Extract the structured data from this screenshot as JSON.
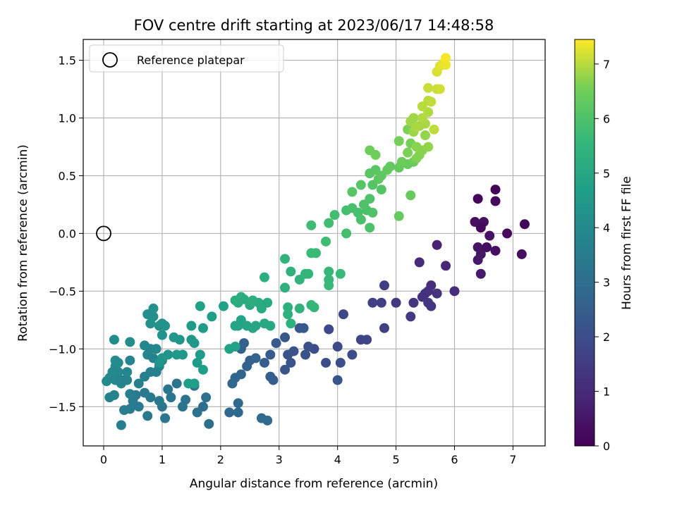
{
  "chart_data": {
    "type": "scatter",
    "title": "FOV centre drift starting at 2023/06/17 14:48:58",
    "xlabel": "Angular distance from reference (arcmin)",
    "ylabel": "Rotation from reference (arcmin)",
    "xlim": [
      -0.35,
      7.55
    ],
    "ylim": [
      -1.84,
      1.68
    ],
    "xticks": [
      0,
      1,
      2,
      3,
      4,
      5,
      6,
      7
    ],
    "yticks": [
      -1.5,
      -1.0,
      -0.5,
      0.0,
      0.5,
      1.0,
      1.5
    ],
    "grid": true,
    "legend": {
      "placement": "top-left",
      "entries": [
        "Reference platepar"
      ]
    },
    "reference_point": {
      "x": 0.0,
      "y": 0.0
    },
    "colorbar": {
      "label": "Hours from first FF file",
      "colormap": "viridis",
      "range": [
        0,
        7.45
      ],
      "ticks": [
        0,
        1,
        2,
        3,
        4,
        5,
        6,
        7
      ]
    },
    "points": [
      [
        6.7,
        0.38,
        0.1
      ],
      [
        6.4,
        0.3,
        0.15
      ],
      [
        6.7,
        0.28,
        0.2
      ],
      [
        7.2,
        0.08,
        0.1
      ],
      [
        6.9,
        0.0,
        0.25
      ],
      [
        6.35,
        0.1,
        0.3
      ],
      [
        6.5,
        0.1,
        0.35
      ],
      [
        6.45,
        0.05,
        0.2
      ],
      [
        6.6,
        -0.02,
        0.4
      ],
      [
        6.4,
        -0.12,
        0.45
      ],
      [
        6.55,
        -0.12,
        0.3
      ],
      [
        6.7,
        -0.15,
        0.35
      ],
      [
        6.45,
        -0.18,
        0.5
      ],
      [
        6.4,
        -0.23,
        0.55
      ],
      [
        7.15,
        -0.18,
        0.3
      ],
      [
        6.45,
        -0.35,
        0.6
      ],
      [
        5.7,
        -0.1,
        0.8
      ],
      [
        5.85,
        -0.28,
        0.9
      ],
      [
        5.4,
        -0.25,
        1.0
      ],
      [
        6.0,
        -0.5,
        1.1
      ],
      [
        5.6,
        -0.45,
        1.1
      ],
      [
        5.55,
        -0.5,
        1.15
      ],
      [
        5.5,
        -0.52,
        1.2
      ],
      [
        5.45,
        -0.55,
        1.2
      ],
      [
        5.7,
        -0.52,
        1.25
      ],
      [
        5.55,
        -0.6,
        1.3
      ],
      [
        5.6,
        -0.63,
        1.3
      ],
      [
        5.3,
        -0.6,
        1.35
      ],
      [
        5.0,
        -0.6,
        1.4
      ],
      [
        5.25,
        -0.72,
        1.45
      ],
      [
        4.8,
        -0.45,
        1.5
      ],
      [
        4.75,
        -0.6,
        1.55
      ],
      [
        4.6,
        -0.6,
        1.6
      ],
      [
        4.8,
        -0.82,
        1.65
      ],
      [
        4.4,
        -0.92,
        1.7
      ],
      [
        4.5,
        -0.92,
        1.75
      ],
      [
        4.1,
        -0.7,
        1.8
      ],
      [
        3.85,
        -0.83,
        1.85
      ],
      [
        4.0,
        -0.98,
        1.9
      ],
      [
        4.25,
        -1.05,
        1.95
      ],
      [
        4.05,
        -1.12,
        2.0
      ],
      [
        3.8,
        -1.12,
        2.0
      ],
      [
        3.6,
        -1.0,
        2.05
      ],
      [
        3.5,
        -0.98,
        2.1
      ],
      [
        3.45,
        -1.05,
        2.1
      ],
      [
        3.25,
        -1.02,
        2.15
      ],
      [
        3.15,
        -1.05,
        2.2
      ],
      [
        3.2,
        -1.12,
        2.2
      ],
      [
        3.1,
        -1.18,
        2.25
      ],
      [
        3.35,
        -0.82,
        2.25
      ],
      [
        3.42,
        -0.82,
        2.3
      ],
      [
        3.1,
        -0.9,
        2.3
      ],
      [
        2.95,
        -0.95,
        2.35
      ],
      [
        2.85,
        -1.05,
        2.4
      ],
      [
        2.75,
        -1.12,
        2.45
      ],
      [
        2.85,
        -1.24,
        2.5
      ],
      [
        2.9,
        -1.27,
        2.5
      ],
      [
        2.5,
        -1.1,
        2.55
      ],
      [
        2.6,
        -1.08,
        2.6
      ],
      [
        2.4,
        -0.95,
        2.6
      ],
      [
        2.35,
        -1.0,
        2.65
      ],
      [
        2.45,
        -1.15,
        2.65
      ],
      [
        2.35,
        -1.22,
        2.7
      ],
      [
        2.25,
        -1.25,
        2.7
      ],
      [
        2.2,
        -1.3,
        2.75
      ],
      [
        2.15,
        -1.55,
        2.75
      ],
      [
        2.3,
        -1.55,
        2.8
      ],
      [
        2.3,
        -1.47,
        2.8
      ],
      [
        2.7,
        -1.6,
        2.85
      ],
      [
        2.8,
        -1.62,
        2.85
      ],
      [
        4.0,
        -1.27,
        2.2
      ],
      [
        1.8,
        -1.65,
        3.05
      ],
      [
        1.7,
        -1.5,
        3.05
      ],
      [
        1.6,
        -1.55,
        3.1
      ],
      [
        1.75,
        -1.42,
        3.1
      ],
      [
        1.55,
        -1.32,
        3.15
      ],
      [
        1.4,
        -1.44,
        3.15
      ],
      [
        1.35,
        -1.5,
        3.2
      ],
      [
        1.25,
        -1.3,
        3.2
      ],
      [
        1.15,
        -1.42,
        3.25
      ],
      [
        1.1,
        -1.35,
        3.25
      ],
      [
        1.0,
        -1.5,
        3.3
      ],
      [
        1.05,
        -1.6,
        3.3
      ],
      [
        0.95,
        -1.45,
        3.35
      ],
      [
        0.8,
        -1.42,
        3.35
      ],
      [
        0.7,
        -1.38,
        3.4
      ],
      [
        0.75,
        -1.58,
        3.4
      ],
      [
        0.6,
        -1.5,
        3.45
      ],
      [
        0.55,
        -1.4,
        3.45
      ],
      [
        0.5,
        -1.45,
        3.5
      ],
      [
        0.45,
        -1.52,
        3.5
      ],
      [
        0.35,
        -1.53,
        3.55
      ],
      [
        0.3,
        -1.66,
        3.55
      ],
      [
        0.45,
        -1.39,
        3.6
      ],
      [
        0.6,
        -1.3,
        3.6
      ],
      [
        0.7,
        -1.24,
        3.65
      ],
      [
        0.8,
        -1.2,
        3.65
      ],
      [
        0.9,
        -1.2,
        3.7
      ],
      [
        0.95,
        -1.15,
        3.7
      ],
      [
        1.0,
        -1.1,
        3.75
      ],
      [
        0.85,
        -1.08,
        3.75
      ],
      [
        0.75,
        -1.05,
        3.8
      ],
      [
        0.8,
        -1.0,
        3.8
      ],
      [
        0.7,
        -0.97,
        3.85
      ],
      [
        0.9,
        -1.0,
        3.85
      ],
      [
        0.45,
        -1.1,
        3.8
      ],
      [
        0.4,
        -1.2,
        3.85
      ],
      [
        0.35,
        -1.27,
        3.9
      ],
      [
        0.3,
        -1.3,
        3.9
      ],
      [
        0.25,
        -1.2,
        3.95
      ],
      [
        0.2,
        -1.15,
        3.95
      ],
      [
        0.15,
        -1.2,
        4.0
      ],
      [
        0.1,
        -1.25,
        4.0
      ],
      [
        0.05,
        -1.28,
        3.95
      ],
      [
        0.2,
        -1.27,
        3.85
      ],
      [
        0.3,
        -1.27,
        3.8
      ],
      [
        0.4,
        -1.27,
        3.75
      ],
      [
        0.1,
        -1.42,
        3.7
      ],
      [
        0.18,
        -1.4,
        3.75
      ],
      [
        0.2,
        -1.1,
        4.05
      ],
      [
        0.25,
        -1.12,
        4.05
      ],
      [
        0.18,
        -0.92,
        4.1
      ],
      [
        0.45,
        -0.94,
        4.1
      ],
      [
        0.75,
        -0.7,
        4.15
      ],
      [
        0.85,
        -0.65,
        4.2
      ],
      [
        0.85,
        -0.72,
        4.15
      ],
      [
        0.8,
        -0.78,
        4.2
      ],
      [
        0.95,
        -0.8,
        4.25
      ],
      [
        1.0,
        -0.78,
        4.25
      ],
      [
        1.05,
        -0.8,
        4.3
      ],
      [
        1.0,
        -0.88,
        4.3
      ],
      [
        1.1,
        -1.05,
        4.3
      ],
      [
        1.0,
        -1.08,
        4.35
      ],
      [
        0.95,
        -1.12,
        4.35
      ],
      [
        1.2,
        -0.9,
        4.4
      ],
      [
        1.3,
        -0.92,
        4.4
      ],
      [
        1.25,
        -1.05,
        4.45
      ],
      [
        1.35,
        -1.05,
        4.45
      ],
      [
        1.5,
        -0.92,
        4.5
      ],
      [
        1.55,
        -0.95,
        4.5
      ],
      [
        1.5,
        -0.8,
        4.55
      ],
      [
        1.7,
        -0.82,
        4.55
      ],
      [
        1.65,
        -1.05,
        4.6
      ],
      [
        1.6,
        -1.12,
        4.6
      ],
      [
        1.7,
        -1.18,
        4.65
      ],
      [
        1.55,
        -1.3,
        4.65
      ],
      [
        1.45,
        -1.3,
        4.7
      ],
      [
        1.85,
        -0.72,
        4.7
      ],
      [
        1.65,
        -0.63,
        4.75
      ],
      [
        2.05,
        -0.63,
        4.75
      ],
      [
        2.15,
        -1.0,
        4.8
      ],
      [
        2.25,
        -0.98,
        4.8
      ],
      [
        2.35,
        -0.75,
        4.85
      ],
      [
        2.3,
        -0.8,
        4.85
      ],
      [
        2.25,
        -0.8,
        4.9
      ],
      [
        2.45,
        -0.8,
        4.9
      ],
      [
        2.55,
        -0.82,
        4.95
      ],
      [
        2.6,
        -0.8,
        4.95
      ],
      [
        2.75,
        -0.78,
        5.0
      ],
      [
        2.85,
        -0.8,
        5.0
      ],
      [
        2.7,
        -0.65,
        5.05
      ],
      [
        2.8,
        -0.6,
        5.05
      ],
      [
        2.65,
        -0.6,
        5.1
      ],
      [
        2.5,
        -0.62,
        5.1
      ],
      [
        2.3,
        -0.6,
        5.15
      ],
      [
        2.4,
        -0.57,
        5.15
      ],
      [
        2.25,
        -0.58,
        5.2
      ],
      [
        2.35,
        -0.55,
        5.2
      ],
      [
        2.55,
        -0.58,
        5.25
      ],
      [
        2.75,
        -0.38,
        5.25
      ],
      [
        3.1,
        -0.47,
        5.3
      ],
      [
        3.15,
        -0.64,
        5.3
      ],
      [
        3.15,
        -0.7,
        5.35
      ],
      [
        3.2,
        -0.78,
        5.35
      ],
      [
        3.35,
        -0.65,
        5.4
      ],
      [
        3.2,
        -0.33,
        5.4
      ],
      [
        3.1,
        -0.22,
        5.45
      ],
      [
        3.35,
        -0.4,
        5.45
      ],
      [
        3.45,
        -0.35,
        5.5
      ],
      [
        3.5,
        -0.35,
        5.5
      ],
      [
        3.55,
        -0.62,
        5.55
      ],
      [
        3.6,
        -0.64,
        5.55
      ],
      [
        3.85,
        -0.33,
        5.6
      ],
      [
        3.85,
        -0.4,
        5.6
      ],
      [
        3.85,
        -0.45,
        5.65
      ],
      [
        4.05,
        -0.35,
        5.65
      ],
      [
        3.55,
        -0.17,
        5.7
      ],
      [
        3.63,
        -0.17,
        5.7
      ],
      [
        3.8,
        -0.07,
        5.75
      ],
      [
        3.55,
        0.07,
        5.75
      ],
      [
        3.85,
        0.09,
        5.8
      ],
      [
        3.95,
        0.16,
        5.8
      ],
      [
        4.15,
        0.0,
        5.85
      ],
      [
        4.15,
        0.2,
        5.85
      ],
      [
        4.25,
        0.22,
        5.9
      ],
      [
        4.35,
        0.18,
        5.9
      ],
      [
        4.4,
        0.12,
        5.95
      ],
      [
        4.5,
        0.2,
        5.95
      ],
      [
        4.55,
        0.05,
        6.0
      ],
      [
        4.45,
        0.25,
        6.0
      ],
      [
        4.55,
        0.3,
        6.05
      ],
      [
        4.6,
        0.18,
        6.05
      ],
      [
        4.6,
        0.42,
        6.1
      ],
      [
        4.75,
        0.38,
        6.1
      ],
      [
        4.25,
        0.36,
        6.15
      ],
      [
        4.4,
        0.42,
        6.15
      ],
      [
        4.55,
        0.52,
        6.2
      ],
      [
        4.65,
        0.55,
        6.2
      ],
      [
        4.7,
        0.47,
        6.25
      ],
      [
        4.75,
        0.5,
        6.25
      ],
      [
        4.85,
        0.55,
        6.3
      ],
      [
        4.9,
        0.58,
        6.3
      ],
      [
        5.05,
        0.57,
        6.35
      ],
      [
        5.05,
        0.15,
        6.35
      ],
      [
        5.25,
        0.33,
        6.4
      ],
      [
        5.2,
        0.6,
        6.4
      ],
      [
        5.1,
        0.62,
        6.45
      ],
      [
        5.3,
        0.62,
        6.45
      ],
      [
        4.55,
        0.72,
        6.5
      ],
      [
        4.65,
        0.68,
        6.5
      ],
      [
        5.05,
        0.8,
        6.55
      ],
      [
        5.25,
        0.78,
        6.55
      ],
      [
        5.2,
        0.9,
        6.6
      ],
      [
        5.2,
        0.7,
        6.6
      ],
      [
        5.35,
        0.65,
        6.65
      ],
      [
        5.4,
        0.68,
        6.65
      ],
      [
        5.35,
        0.75,
        6.7
      ],
      [
        5.45,
        0.72,
        6.7
      ],
      [
        5.55,
        0.75,
        6.75
      ],
      [
        5.5,
        0.85,
        6.75
      ],
      [
        5.3,
        0.88,
        6.8
      ],
      [
        5.4,
        0.93,
        6.8
      ],
      [
        5.25,
        0.97,
        6.85
      ],
      [
        5.3,
        1.0,
        6.85
      ],
      [
        5.35,
        0.92,
        6.9
      ],
      [
        5.5,
        0.95,
        6.9
      ],
      [
        5.45,
        1.0,
        6.95
      ],
      [
        5.55,
        1.05,
        6.95
      ],
      [
        5.45,
        1.1,
        7.0
      ],
      [
        5.55,
        1.15,
        7.0
      ],
      [
        5.6,
        1.14,
        7.05
      ],
      [
        5.65,
        0.9,
        7.05
      ],
      [
        5.7,
        1.25,
        7.1
      ],
      [
        5.55,
        1.26,
        7.1
      ],
      [
        5.75,
        1.25,
        7.15
      ],
      [
        5.7,
        1.4,
        7.2
      ],
      [
        5.75,
        1.45,
        7.25
      ],
      [
        5.8,
        1.47,
        7.3
      ],
      [
        5.85,
        1.46,
        7.35
      ],
      [
        5.85,
        1.52,
        7.4
      ]
    ]
  }
}
